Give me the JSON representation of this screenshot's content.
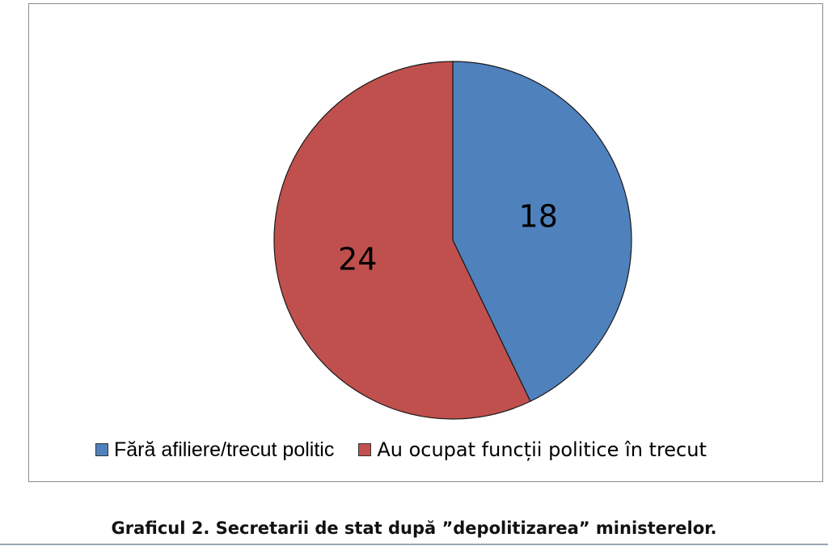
{
  "chart_data": {
    "type": "pie",
    "slices": [
      {
        "label": "Fără afiliere/trecut politic",
        "value": 18,
        "color": "#4f81bd"
      },
      {
        "label": "Au ocupat funcții politice în trecut",
        "value": 24,
        "color": "#c0504d"
      }
    ],
    "start_angle_deg": 0,
    "direction": "clockwise",
    "data_labels": [
      "18",
      "24"
    ],
    "legend_position": "bottom"
  },
  "caption": "Graficul 2. Secretarii de stat după ”depolitizarea” ministerelor."
}
